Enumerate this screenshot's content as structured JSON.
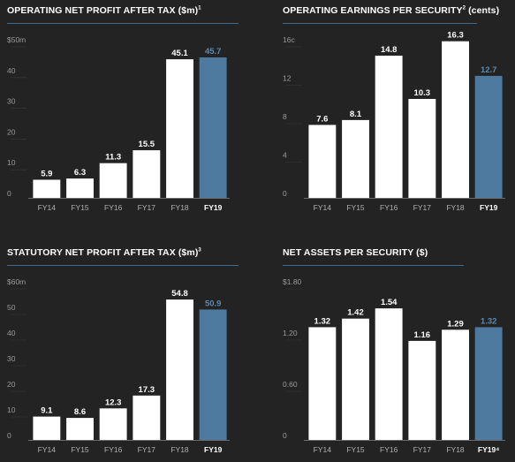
{
  "colors": {
    "background": "#232323",
    "bar": "#ffffff",
    "highlight_bar": "#4f7aa0",
    "highlight_text": "#5e88ad",
    "title_rule": "#3f6b8f"
  },
  "chart_data": [
    {
      "type": "bar",
      "title": "OPERATING NET PROFIT AFTER TAX ($m)",
      "title_sup": "1",
      "categories": [
        "FY14",
        "FY15",
        "FY16",
        "FY17",
        "FY18",
        "FY19"
      ],
      "values": [
        5.9,
        6.3,
        11.3,
        15.5,
        45.1,
        45.7
      ],
      "value_labels": [
        "5.9",
        "6.3",
        "11.3",
        "15.5",
        "45.1",
        "45.7"
      ],
      "category_labels": [
        "FY14",
        "FY15",
        "FY16",
        "FY17",
        "FY18",
        "FY19"
      ],
      "highlight_index": 5,
      "yticks": [
        0,
        10,
        20,
        30,
        40,
        50
      ],
      "ytick_labels": [
        "0",
        "10",
        "20",
        "30",
        "40",
        "$50m"
      ],
      "ylim": [
        0,
        50
      ]
    },
    {
      "type": "bar",
      "title": "OPERATING EARNINGS PER SECURITY",
      "title_sup": "2",
      "title_suffix": " (cents)",
      "categories": [
        "FY14",
        "FY15",
        "FY16",
        "FY17",
        "FY18",
        "FY19"
      ],
      "values": [
        7.6,
        8.1,
        14.8,
        10.3,
        16.3,
        12.7
      ],
      "value_labels": [
        "7.6",
        "8.1",
        "14.8",
        "10.3",
        "16.3",
        "12.7"
      ],
      "category_labels": [
        "FY14",
        "FY15",
        "FY16",
        "FY17",
        "FY18",
        "FY19"
      ],
      "highlight_index": 5,
      "yticks": [
        0,
        4,
        8,
        12,
        16
      ],
      "ytick_labels": [
        "0",
        "4",
        "8",
        "12",
        "16c"
      ],
      "ylim": [
        0,
        16
      ]
    },
    {
      "type": "bar",
      "title": "STATUTORY NET PROFIT AFTER TAX ($m)",
      "title_sup": "3",
      "categories": [
        "FY14",
        "FY15",
        "FY16",
        "FY17",
        "FY18",
        "FY19"
      ],
      "values": [
        9.1,
        8.6,
        12.3,
        17.3,
        54.8,
        50.9
      ],
      "value_labels": [
        "9.1",
        "8.6",
        "12.3",
        "17.3",
        "54.8",
        "50.9"
      ],
      "category_labels": [
        "FY14",
        "FY15",
        "FY16",
        "FY17",
        "FY18",
        "FY19"
      ],
      "highlight_index": 5,
      "yticks": [
        0,
        10,
        20,
        30,
        40,
        50,
        60
      ],
      "ytick_labels": [
        "0",
        "10",
        "20",
        "30",
        "40",
        "50",
        "$60m"
      ],
      "ylim": [
        0,
        60
      ]
    },
    {
      "type": "bar",
      "title": "NET ASSETS PER SECURITY ($)",
      "title_sup": "",
      "categories": [
        "FY14",
        "FY15",
        "FY16",
        "FY17",
        "FY18",
        "FY19"
      ],
      "values": [
        1.32,
        1.42,
        1.54,
        1.16,
        1.29,
        1.32
      ],
      "value_labels": [
        "1.32",
        "1.42",
        "1.54",
        "1.16",
        "1.29",
        "1.32"
      ],
      "category_labels": [
        "FY14",
        "FY15",
        "FY16",
        "FY17",
        "FY18",
        "FY19⁴"
      ],
      "highlight_index": 5,
      "yticks": [
        0,
        0.6,
        1.2,
        1.8
      ],
      "ytick_labels": [
        "0",
        "0.60",
        "1.20",
        "$1.80"
      ],
      "ylim": [
        0,
        1.8
      ]
    }
  ]
}
